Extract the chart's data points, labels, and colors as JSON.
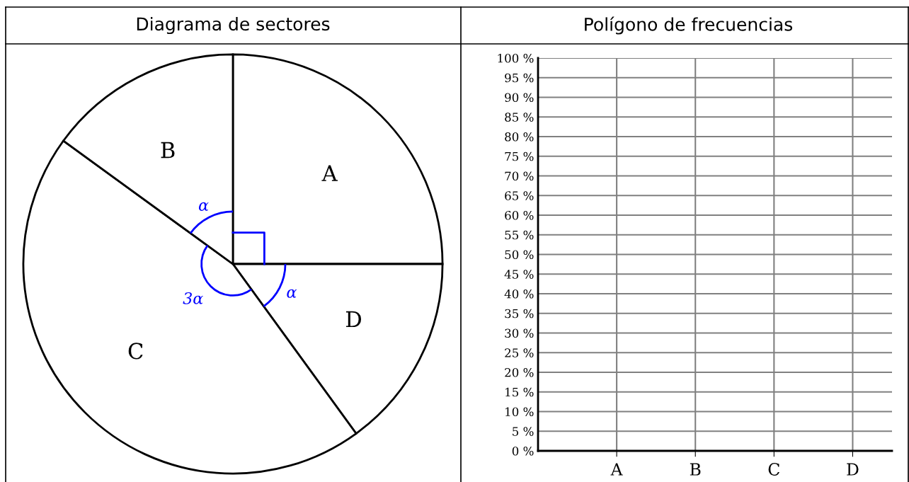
{
  "chart_data": [
    {
      "type": "pie",
      "title": "Diagrama de sectores",
      "categories": [
        "A",
        "D",
        "C",
        "B"
      ],
      "values": [
        25,
        15,
        45,
        15
      ],
      "colors": [
        "#ffffff",
        "#ffffff",
        "#ffffff",
        "#ffffff"
      ],
      "annotations": [
        "α",
        "α",
        "3α"
      ]
    },
    {
      "type": "line",
      "title": "Polígono de frecuencias",
      "categories": [
        "A",
        "B",
        "C",
        "D"
      ],
      "grid": true,
      "series": [
        {
          "values": [
            null,
            null,
            null,
            null
          ]
        }
      ],
      "ylim": [
        0,
        100
      ],
      "yticks": [
        {
          "value": 0,
          "label": "0 %"
        },
        {
          "value": 5,
          "label": "5 %"
        },
        {
          "value": 10,
          "label": "10 %"
        },
        {
          "value": 15,
          "label": "15 %"
        },
        {
          "value": 20,
          "label": "20 %"
        },
        {
          "value": 25,
          "label": "25 %"
        },
        {
          "value": 30,
          "label": "30 %"
        },
        {
          "value": 35,
          "label": "35 %"
        },
        {
          "value": 40,
          "label": "40 %"
        },
        {
          "value": 45,
          "label": "45 %"
        },
        {
          "value": 50,
          "label": "50 %"
        },
        {
          "value": 55,
          "label": "55 %"
        },
        {
          "value": 60,
          "label": "60 %"
        },
        {
          "value": 65,
          "label": "65 %"
        },
        {
          "value": 70,
          "label": "70 %"
        },
        {
          "value": 75,
          "label": "75 %"
        },
        {
          "value": 80,
          "label": "80 %"
        },
        {
          "value": 85,
          "label": "85 %"
        },
        {
          "value": 90,
          "label": "90 %"
        },
        {
          "value": 95,
          "label": "95 %"
        },
        {
          "value": 100,
          "label": "100 %"
        }
      ]
    }
  ]
}
